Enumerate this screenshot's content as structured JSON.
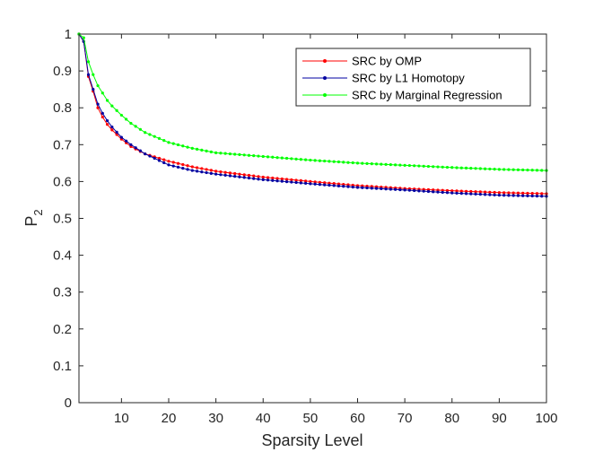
{
  "chart_data": {
    "type": "line",
    "xlabel": "Sparsity Level",
    "ylabel": "P",
    "ylabel_subscript": "2",
    "xlim": [
      1,
      100
    ],
    "ylim": [
      0,
      1
    ],
    "xticks": [
      10,
      20,
      30,
      40,
      50,
      60,
      70,
      80,
      90,
      100
    ],
    "yticks": [
      0,
      0.1,
      0.2,
      0.3,
      0.4,
      0.5,
      0.6,
      0.7,
      0.8,
      0.9,
      1
    ],
    "ytick_labels": [
      "0",
      "0.1",
      "0.2",
      "0.3",
      "0.4",
      "0.5",
      "0.6",
      "0.7",
      "0.8",
      "0.9",
      "1"
    ],
    "grid": false,
    "legend_position": "top-right",
    "x": [
      1,
      2,
      3,
      4,
      5,
      6,
      7,
      8,
      10,
      12,
      15,
      20,
      25,
      30,
      40,
      50,
      60,
      70,
      80,
      90,
      100
    ],
    "series": [
      {
        "name": "SRC by OMP",
        "color": "#ff0000",
        "values": [
          1.0,
          0.98,
          0.885,
          0.845,
          0.8,
          0.775,
          0.755,
          0.74,
          0.715,
          0.695,
          0.675,
          0.655,
          0.64,
          0.628,
          0.612,
          0.6,
          0.589,
          0.581,
          0.575,
          0.57,
          0.567
        ]
      },
      {
        "name": "SRC by L1 Homotopy",
        "color": "#0000a0",
        "values": [
          1.0,
          0.98,
          0.89,
          0.85,
          0.81,
          0.785,
          0.765,
          0.748,
          0.72,
          0.7,
          0.675,
          0.645,
          0.63,
          0.62,
          0.605,
          0.594,
          0.584,
          0.577,
          0.569,
          0.563,
          0.56
        ]
      },
      {
        "name": "SRC by Marginal Regression",
        "color": "#00ff00",
        "values": [
          1.0,
          0.99,
          0.925,
          0.89,
          0.86,
          0.84,
          0.82,
          0.805,
          0.78,
          0.758,
          0.733,
          0.706,
          0.69,
          0.678,
          0.668,
          0.658,
          0.65,
          0.644,
          0.638,
          0.633,
          0.63
        ]
      }
    ]
  }
}
